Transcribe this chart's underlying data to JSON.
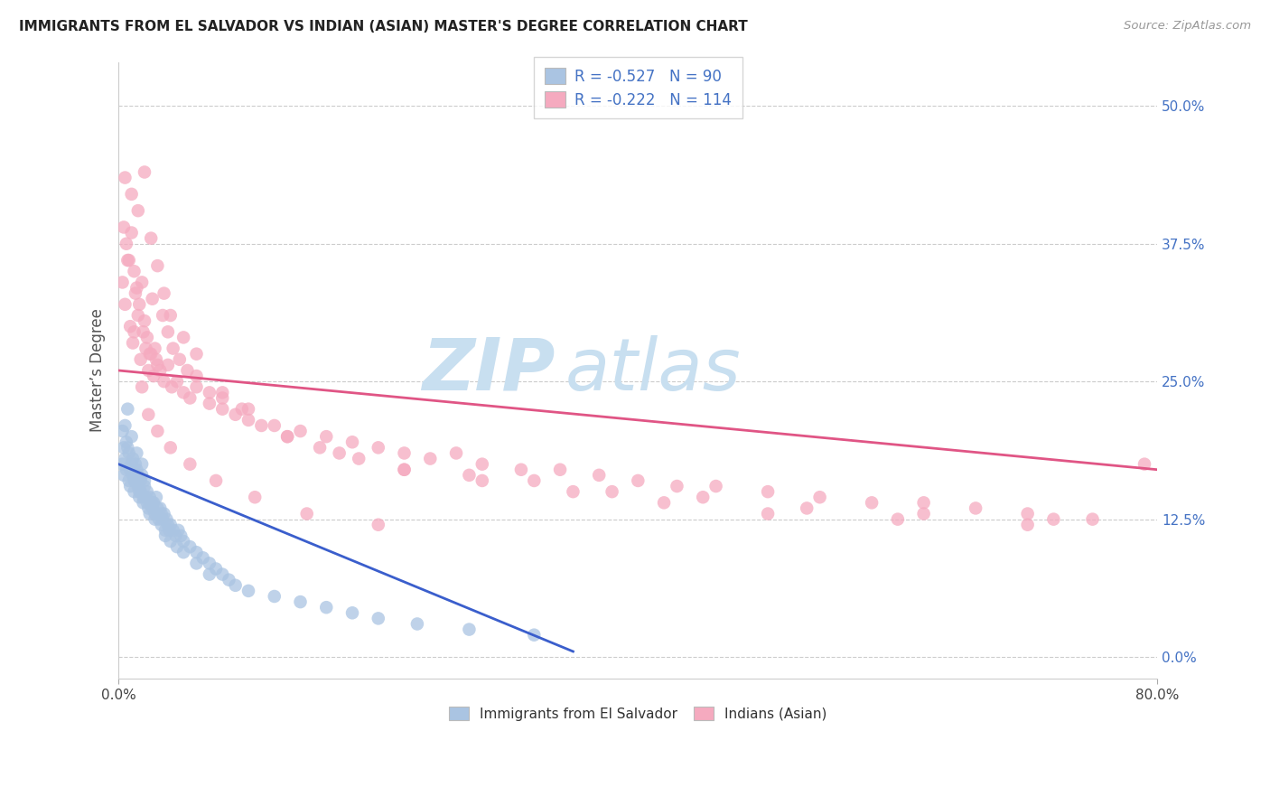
{
  "title": "IMMIGRANTS FROM EL SALVADOR VS INDIAN (ASIAN) MASTER'S DEGREE CORRELATION CHART",
  "source": "Source: ZipAtlas.com",
  "ylabel": "Master’s Degree",
  "yticks": [
    "0.0%",
    "12.5%",
    "25.0%",
    "37.5%",
    "50.0%"
  ],
  "ytick_vals": [
    0.0,
    12.5,
    25.0,
    37.5,
    50.0
  ],
  "xlim": [
    0.0,
    80.0
  ],
  "ylim": [
    -2.0,
    54.0
  ],
  "legend_r1": "R = -0.527",
  "legend_n1": "N = 90",
  "legend_r2": "R = -0.222",
  "legend_n2": "N = 114",
  "legend_label1": "Immigrants from El Salvador",
  "legend_label2": "Indians (Asian)",
  "color_blue": "#aac4e2",
  "color_pink": "#f5aabf",
  "color_blue_line": "#3a5ecc",
  "color_pink_line": "#e05585",
  "color_legend_text": "#4472C4",
  "watermark_zip": "ZIP",
  "watermark_atlas": "atlas",
  "watermark_color_zip": "#c8dff0",
  "watermark_color_atlas": "#c8dff0",
  "background": "#ffffff",
  "grid_color": "#cccccc",
  "blue_x": [
    0.3,
    0.4,
    0.5,
    0.6,
    0.7,
    0.8,
    0.9,
    1.0,
    1.1,
    1.2,
    1.3,
    1.4,
    1.5,
    1.6,
    1.7,
    1.8,
    1.9,
    2.0,
    2.1,
    2.2,
    2.3,
    2.4,
    2.5,
    2.6,
    2.7,
    2.8,
    2.9,
    3.0,
    3.1,
    3.2,
    3.3,
    3.4,
    3.5,
    3.6,
    3.7,
    3.8,
    3.9,
    4.0,
    4.2,
    4.4,
    4.6,
    4.8,
    5.0,
    5.5,
    6.0,
    6.5,
    7.0,
    7.5,
    8.0,
    8.5,
    0.3,
    0.4,
    0.5,
    0.6,
    0.7,
    0.8,
    0.9,
    1.0,
    1.1,
    1.2,
    1.3,
    1.4,
    1.5,
    1.6,
    1.7,
    1.8,
    1.9,
    2.0,
    2.2,
    2.4,
    2.6,
    2.8,
    3.0,
    3.3,
    3.6,
    4.0,
    4.5,
    5.0,
    6.0,
    7.0,
    9.0,
    10.0,
    12.0,
    14.0,
    16.0,
    18.0,
    20.0,
    23.0,
    27.0,
    32.0
  ],
  "blue_y": [
    17.5,
    16.5,
    18.0,
    17.0,
    19.0,
    16.0,
    15.5,
    17.5,
    16.5,
    15.0,
    16.0,
    17.0,
    15.5,
    14.5,
    15.0,
    16.5,
    14.0,
    15.5,
    14.5,
    15.0,
    13.5,
    14.5,
    14.0,
    13.5,
    14.0,
    13.0,
    14.5,
    13.0,
    12.5,
    13.5,
    13.0,
    12.5,
    13.0,
    11.5,
    12.5,
    12.0,
    11.5,
    12.0,
    11.5,
    11.0,
    11.5,
    11.0,
    10.5,
    10.0,
    9.5,
    9.0,
    8.5,
    8.0,
    7.5,
    7.0,
    20.5,
    19.0,
    21.0,
    19.5,
    22.5,
    18.5,
    17.0,
    20.0,
    18.0,
    16.0,
    17.5,
    18.5,
    16.5,
    15.0,
    16.0,
    17.5,
    14.5,
    16.0,
    14.0,
    13.0,
    14.0,
    12.5,
    13.5,
    12.0,
    11.0,
    10.5,
    10.0,
    9.5,
    8.5,
    7.5,
    6.5,
    6.0,
    5.5,
    5.0,
    4.5,
    4.0,
    3.5,
    3.0,
    2.5,
    2.0
  ],
  "pink_x": [
    0.3,
    0.5,
    0.7,
    0.9,
    1.1,
    1.3,
    1.5,
    1.7,
    1.9,
    2.1,
    2.3,
    2.5,
    2.7,
    2.9,
    3.2,
    3.5,
    3.8,
    4.1,
    4.5,
    5.0,
    5.5,
    6.0,
    7.0,
    8.0,
    9.0,
    10.0,
    12.0,
    14.0,
    16.0,
    18.0,
    20.0,
    22.0,
    24.0,
    26.0,
    28.0,
    31.0,
    34.0,
    37.0,
    40.0,
    43.0,
    46.0,
    50.0,
    54.0,
    58.0,
    62.0,
    66.0,
    70.0,
    75.0,
    79.0,
    0.4,
    0.6,
    0.8,
    1.0,
    1.2,
    1.4,
    1.6,
    1.8,
    2.0,
    2.2,
    2.4,
    2.6,
    2.8,
    3.0,
    3.4,
    3.8,
    4.2,
    4.7,
    5.3,
    6.0,
    7.0,
    8.0,
    9.5,
    11.0,
    13.0,
    15.5,
    18.5,
    22.0,
    27.0,
    32.0,
    38.0,
    45.0,
    53.0,
    62.0,
    72.0,
    0.5,
    1.0,
    1.5,
    2.0,
    2.5,
    3.0,
    3.5,
    4.0,
    5.0,
    6.0,
    8.0,
    10.0,
    13.0,
    17.0,
    22.0,
    28.0,
    35.0,
    42.0,
    50.0,
    60.0,
    70.0,
    1.2,
    1.8,
    2.3,
    3.0,
    4.0,
    5.5,
    7.5,
    10.5,
    14.5,
    20.0
  ],
  "pink_y": [
    34.0,
    32.0,
    36.0,
    30.0,
    28.5,
    33.0,
    31.0,
    27.0,
    29.5,
    28.0,
    26.0,
    27.5,
    25.5,
    27.0,
    26.0,
    25.0,
    26.5,
    24.5,
    25.0,
    24.0,
    23.5,
    24.5,
    23.0,
    22.5,
    22.0,
    21.5,
    21.0,
    20.5,
    20.0,
    19.5,
    19.0,
    18.5,
    18.0,
    18.5,
    17.5,
    17.0,
    17.0,
    16.5,
    16.0,
    15.5,
    15.5,
    15.0,
    14.5,
    14.0,
    14.0,
    13.5,
    13.0,
    12.5,
    17.5,
    39.0,
    37.5,
    36.0,
    38.5,
    35.0,
    33.5,
    32.0,
    34.0,
    30.5,
    29.0,
    27.5,
    32.5,
    28.0,
    26.5,
    31.0,
    29.5,
    28.0,
    27.0,
    26.0,
    25.5,
    24.0,
    23.5,
    22.5,
    21.0,
    20.0,
    19.0,
    18.0,
    17.0,
    16.5,
    16.0,
    15.0,
    14.5,
    13.5,
    13.0,
    12.5,
    43.5,
    42.0,
    40.5,
    44.0,
    38.0,
    35.5,
    33.0,
    31.0,
    29.0,
    27.5,
    24.0,
    22.5,
    20.0,
    18.5,
    17.0,
    16.0,
    15.0,
    14.0,
    13.0,
    12.5,
    12.0,
    29.5,
    24.5,
    22.0,
    20.5,
    19.0,
    17.5,
    16.0,
    14.5,
    13.0,
    12.0
  ]
}
